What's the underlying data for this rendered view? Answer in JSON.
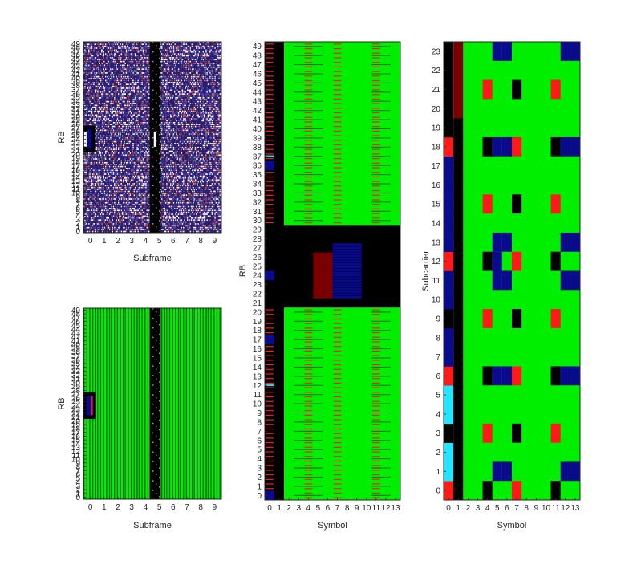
{
  "colors": {
    "black": "#000000",
    "green": "#00ee00",
    "navy": "#0a0a8c",
    "maroon": "#7a0000",
    "red": "#ff1a1a",
    "cyan": "#22e6ff",
    "white": "#ffffff",
    "axis": "#262626"
  },
  "chart_data": [
    {
      "type": "heatmap",
      "title": "",
      "xlabel": "Subframe",
      "ylabel": "RB",
      "x_ticks": [
        "0",
        "1",
        "2",
        "3",
        "4",
        "5",
        "6",
        "7",
        "8",
        "9"
      ],
      "y_ticks": [
        "0",
        "1",
        "2",
        "3",
        "4",
        "5",
        "6",
        "7",
        "8",
        "9",
        "10",
        "11",
        "12",
        "13",
        "14",
        "15",
        "16",
        "17",
        "18",
        "19",
        "20",
        "21",
        "22",
        "23",
        "24",
        "25",
        "26",
        "27",
        "28",
        "29",
        "30",
        "31",
        "32",
        "33",
        "34",
        "35",
        "36",
        "37",
        "38",
        "39",
        "40",
        "41",
        "42",
        "43",
        "44",
        "45",
        "46",
        "47",
        "48",
        "49"
      ],
      "xlim": [
        0,
        10
      ],
      "ylim": [
        0,
        50
      ],
      "background": "noise-navy-white-red",
      "regions": [
        {
          "name": "synchronization-block",
          "x": [
            0,
            0.9
          ],
          "y": [
            21,
            28
          ],
          "color": "black"
        },
        {
          "name": "synchronization-core",
          "x": [
            0.3,
            0.6
          ],
          "y": [
            22,
            27
          ],
          "color": "navy"
        },
        {
          "name": "special-subframe",
          "x": [
            4.8,
            5.6
          ],
          "y": [
            0,
            50
          ],
          "color": "black"
        }
      ]
    },
    {
      "type": "heatmap",
      "title": "",
      "xlabel": "Subframe",
      "ylabel": "RB",
      "x_ticks": [
        "0",
        "1",
        "2",
        "3",
        "4",
        "5",
        "6",
        "7",
        "8",
        "9"
      ],
      "y_ticks": [
        "0",
        "1",
        "2",
        "3",
        "4",
        "5",
        "6",
        "7",
        "8",
        "9",
        "10",
        "11",
        "12",
        "13",
        "14",
        "15",
        "16",
        "17",
        "18",
        "19",
        "20",
        "21",
        "22",
        "23",
        "24",
        "25",
        "26",
        "27",
        "28",
        "29",
        "30",
        "31",
        "32",
        "33",
        "34",
        "35",
        "36",
        "37",
        "38",
        "39",
        "40",
        "41",
        "42",
        "43",
        "44",
        "45",
        "46",
        "47",
        "48",
        "49"
      ],
      "xlim": [
        0,
        10
      ],
      "ylim": [
        0,
        50
      ],
      "background": "green-with-symbol-stripes",
      "regions": [
        {
          "name": "synchronization-block",
          "x": [
            0,
            0.9
          ],
          "y": [
            21,
            28
          ],
          "color": "black"
        },
        {
          "name": "synchronization-core",
          "x": [
            0.2,
            0.7
          ],
          "y": [
            22,
            27
          ],
          "color": "navy"
        },
        {
          "name": "special-subframe",
          "x": [
            4.8,
            5.6
          ],
          "y": [
            0,
            50
          ],
          "color": "black"
        }
      ]
    },
    {
      "type": "heatmap",
      "title": "",
      "xlabel": "Symbol",
      "ylabel": "RB",
      "x_ticks": [
        "0",
        "1",
        "2",
        "3",
        "4",
        "5",
        "6",
        "7",
        "8",
        "9",
        "10",
        "11",
        "12",
        "13"
      ],
      "y_ticks": [
        "0",
        "1",
        "2",
        "3",
        "4",
        "5",
        "6",
        "7",
        "8",
        "9",
        "10",
        "11",
        "12",
        "13",
        "14",
        "15",
        "16",
        "17",
        "18",
        "19",
        "20",
        "21",
        "22",
        "23",
        "24",
        "25",
        "26",
        "27",
        "28",
        "29",
        "30",
        "31",
        "32",
        "33",
        "34",
        "35",
        "36",
        "37",
        "38",
        "39",
        "40",
        "41",
        "42",
        "43",
        "44",
        "45",
        "46",
        "47",
        "48",
        "49"
      ],
      "xlim": [
        0,
        14
      ],
      "ylim": [
        0,
        50
      ],
      "regions": [
        {
          "name": "control-symbols",
          "x": [
            0,
            2
          ],
          "y": [
            0,
            50
          ],
          "color": "black"
        },
        {
          "name": "data-region",
          "x": [
            2,
            14
          ],
          "y": [
            0,
            50
          ],
          "color": "green"
        },
        {
          "name": "center-block",
          "x": [
            0,
            14
          ],
          "y": [
            21,
            30
          ],
          "color": "black"
        },
        {
          "name": "maroon-block",
          "x": [
            5,
            7
          ],
          "y": [
            22,
            27
          ],
          "color": "maroon"
        },
        {
          "name": "navy-block",
          "x": [
            7,
            10
          ],
          "y": [
            22,
            28
          ],
          "color": "navy"
        }
      ]
    },
    {
      "type": "heatmap",
      "title": "",
      "xlabel": "Symbol",
      "ylabel": "Subcarrier",
      "x_ticks": [
        "0",
        "1",
        "2",
        "3",
        "4",
        "5",
        "6",
        "7",
        "8",
        "9",
        "10",
        "11",
        "12",
        "13"
      ],
      "y_ticks": [
        "0",
        "1",
        "2",
        "3",
        "4",
        "5",
        "6",
        "7",
        "8",
        "9",
        "10",
        "11",
        "12",
        "13",
        "14",
        "15",
        "16",
        "17",
        "18",
        "19",
        "20",
        "21",
        "22",
        "23"
      ],
      "xlim": [
        0,
        14
      ],
      "ylim": [
        0,
        24
      ],
      "column0_colors": [
        "red",
        "cyan",
        "cyan",
        "black",
        "cyan",
        "cyan",
        "red",
        "navy",
        "navy",
        "black",
        "navy",
        "navy",
        "red",
        "navy",
        "navy",
        "navy",
        "navy",
        "navy",
        "red",
        "black",
        "black",
        "black",
        "black",
        "black"
      ],
      "column1_colors": [
        "black",
        "black",
        "black",
        "black",
        "black",
        "black",
        "black",
        "black",
        "black",
        "black",
        "black",
        "black",
        "black",
        "black",
        "black",
        "black",
        "black",
        "black",
        "black",
        "black",
        "maroon",
        "maroon",
        "maroon",
        "maroon"
      ],
      "cells": [
        {
          "x": 4,
          "y": 0,
          "color": "black"
        },
        {
          "x": 7,
          "y": 0,
          "color": "red"
        },
        {
          "x": 11,
          "y": 0,
          "color": "black"
        },
        {
          "x": 5,
          "y": 1,
          "color": "navy"
        },
        {
          "x": 6,
          "y": 1,
          "color": "navy"
        },
        {
          "x": 12,
          "y": 1,
          "color": "navy"
        },
        {
          "x": 13,
          "y": 1,
          "color": "navy"
        },
        {
          "x": 4,
          "y": 3,
          "color": "red"
        },
        {
          "x": 7,
          "y": 3,
          "color": "black"
        },
        {
          "x": 11,
          "y": 3,
          "color": "red"
        },
        {
          "x": 4,
          "y": 6,
          "color": "black"
        },
        {
          "x": 5,
          "y": 6,
          "color": "navy"
        },
        {
          "x": 6,
          "y": 6,
          "color": "navy"
        },
        {
          "x": 7,
          "y": 6,
          "color": "red"
        },
        {
          "x": 11,
          "y": 6,
          "color": "black"
        },
        {
          "x": 12,
          "y": 6,
          "color": "navy"
        },
        {
          "x": 13,
          "y": 6,
          "color": "navy"
        },
        {
          "x": 4,
          "y": 9,
          "color": "red"
        },
        {
          "x": 7,
          "y": 9,
          "color": "black"
        },
        {
          "x": 11,
          "y": 9,
          "color": "red"
        },
        {
          "x": 5,
          "y": 11,
          "color": "navy"
        },
        {
          "x": 6,
          "y": 11,
          "color": "navy"
        },
        {
          "x": 12,
          "y": 11,
          "color": "navy"
        },
        {
          "x": 13,
          "y": 11,
          "color": "navy"
        },
        {
          "x": 4,
          "y": 12,
          "color": "black"
        },
        {
          "x": 5,
          "y": 12,
          "color": "navy"
        },
        {
          "x": 6,
          "y": 12,
          "color": "green"
        },
        {
          "x": 7,
          "y": 12,
          "color": "red"
        },
        {
          "x": 11,
          "y": 12,
          "color": "black"
        },
        {
          "x": 5,
          "y": 13,
          "color": "navy"
        },
        {
          "x": 6,
          "y": 13,
          "color": "navy"
        },
        {
          "x": 12,
          "y": 13,
          "color": "navy"
        },
        {
          "x": 13,
          "y": 13,
          "color": "navy"
        },
        {
          "x": 4,
          "y": 15,
          "color": "red"
        },
        {
          "x": 7,
          "y": 15,
          "color": "black"
        },
        {
          "x": 11,
          "y": 15,
          "color": "red"
        },
        {
          "x": 4,
          "y": 18,
          "color": "black"
        },
        {
          "x": 5,
          "y": 18,
          "color": "navy"
        },
        {
          "x": 6,
          "y": 18,
          "color": "navy"
        },
        {
          "x": 7,
          "y": 18,
          "color": "red"
        },
        {
          "x": 11,
          "y": 18,
          "color": "black"
        },
        {
          "x": 12,
          "y": 18,
          "color": "navy"
        },
        {
          "x": 13,
          "y": 18,
          "color": "navy"
        },
        {
          "x": 4,
          "y": 21,
          "color": "red"
        },
        {
          "x": 7,
          "y": 21,
          "color": "black"
        },
        {
          "x": 11,
          "y": 21,
          "color": "red"
        },
        {
          "x": 5,
          "y": 23,
          "color": "navy"
        },
        {
          "x": 6,
          "y": 23,
          "color": "navy"
        },
        {
          "x": 12,
          "y": 23,
          "color": "navy"
        },
        {
          "x": 13,
          "y": 23,
          "color": "navy"
        }
      ]
    }
  ]
}
